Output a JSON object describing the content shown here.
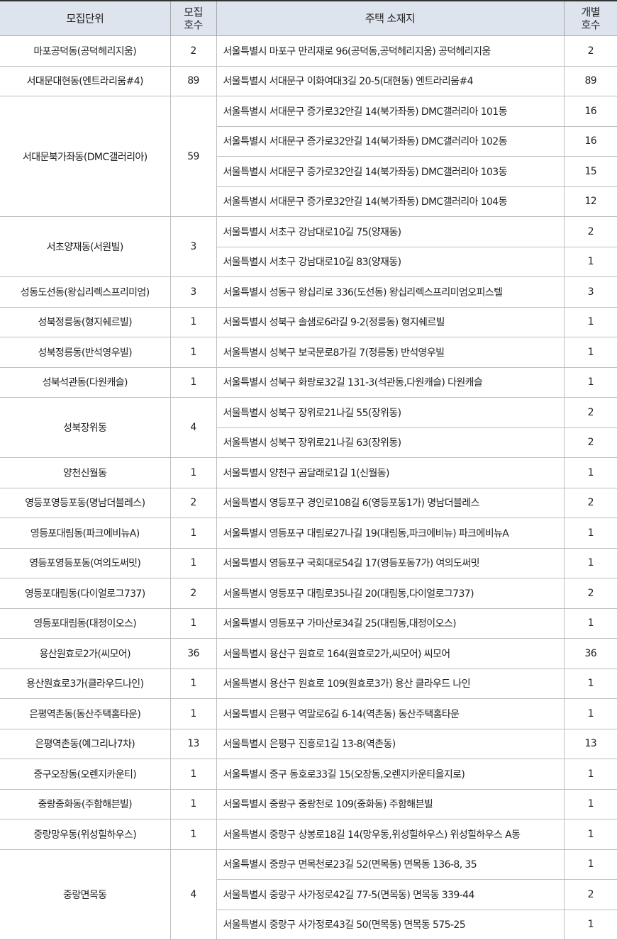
{
  "table": {
    "columns": [
      "모집단위",
      "모집\n호수",
      "주택 소재지",
      "개별\n호수"
    ],
    "groups": [
      {
        "unit": "마포공덕동(공덕헤리지움)",
        "count": 2,
        "addresses": [
          {
            "address": "서울특별시 마포구 만리재로 96(공덕동,공덕헤리지움) 공덕헤리지움",
            "count": 2
          }
        ]
      },
      {
        "unit": "서대문대현동(엔트라리움#4)",
        "count": 89,
        "addresses": [
          {
            "address": "서울특별시 서대문구 이화여대3길 20-5(대현동) 엔트라리움#4",
            "count": 89
          }
        ]
      },
      {
        "unit": "서대문북가좌동(DMC갤러리아)",
        "count": 59,
        "addresses": [
          {
            "address": "서울특별시 서대문구 증가로32안길 14(북가좌동) DMC갤러리아 101동",
            "count": 16
          },
          {
            "address": "서울특별시 서대문구 증가로32안길 14(북가좌동) DMC갤러리아 102동",
            "count": 16
          },
          {
            "address": "서울특별시 서대문구 증가로32안길 14(북가좌동) DMC갤러리아 103동",
            "count": 15
          },
          {
            "address": "서울특별시 서대문구 증가로32안길 14(북가좌동) DMC갤러리아 104동",
            "count": 12
          }
        ]
      },
      {
        "unit": "서초양재동(서원빌)",
        "count": 3,
        "addresses": [
          {
            "address": "서울특별시 서초구 강남대로10길 75(양재동)",
            "count": 2
          },
          {
            "address": "서울특별시 서초구 강남대로10길 83(양재동)",
            "count": 1
          }
        ]
      },
      {
        "unit": "성동도선동(왕십리렉스프리미엄)",
        "count": 3,
        "addresses": [
          {
            "address": "서울특별시 성동구 왕십리로 336(도선동) 왕십리렉스프리미엄오피스텔",
            "count": 3
          }
        ]
      },
      {
        "unit": "성북정릉동(형지쉐르빌)",
        "count": 1,
        "addresses": [
          {
            "address": "서울특별시 성북구 솔샘로6라길 9-2(정릉동) 형지쉐르빌",
            "count": 1
          }
        ]
      },
      {
        "unit": "성북정릉동(반석영우빌)",
        "count": 1,
        "addresses": [
          {
            "address": "서울특별시 성북구 보국문로8가길 7(정릉동) 반석영우빌",
            "count": 1
          }
        ]
      },
      {
        "unit": "성북석관동(다원캐슬)",
        "count": 1,
        "addresses": [
          {
            "address": "서울특별시 성북구 화랑로32길 131-3(석관동,다원캐슬) 다원캐슬",
            "count": 1
          }
        ]
      },
      {
        "unit": "성북장위동",
        "count": 4,
        "addresses": [
          {
            "address": "서울특별시 성북구 장위로21나길 55(장위동)",
            "count": 2
          },
          {
            "address": "서울특별시 성북구 장위로21나길 63(장위동)",
            "count": 2
          }
        ]
      },
      {
        "unit": "양천신월동",
        "count": 1,
        "addresses": [
          {
            "address": "서울특별시 양천구 곰달래로1길 1(신월동)",
            "count": 1
          }
        ]
      },
      {
        "unit": "영등포영등포동(명남더블레스)",
        "count": 2,
        "addresses": [
          {
            "address": "서울특별시 영등포구 경인로108길 6(영등포동1가) 명남더블레스",
            "count": 2
          }
        ]
      },
      {
        "unit": "영등포대림동(파크에비뉴A)",
        "count": 1,
        "addresses": [
          {
            "address": "서울특별시 영등포구 대림로27나길 19(대림동,파크에비뉴) 파크에비뉴A",
            "count": 1
          }
        ]
      },
      {
        "unit": "영등포영등포동(여의도써밋)",
        "count": 1,
        "addresses": [
          {
            "address": "서울특별시 영등포구 국회대로54길 17(영등포동7가) 여의도써밋",
            "count": 1
          }
        ]
      },
      {
        "unit": "영등포대림동(다이얼로그737)",
        "count": 2,
        "addresses": [
          {
            "address": "서울특별시 영등포구 대림로35나길 20(대림동,다이얼로그737)",
            "count": 2
          }
        ]
      },
      {
        "unit": "영등포대림동(대정이오스)",
        "count": 1,
        "addresses": [
          {
            "address": "서울특별시 영등포구 가마산로34길 25(대림동,대정이오스)",
            "count": 1
          }
        ]
      },
      {
        "unit": "용산원효로2가(씨모어)",
        "count": 36,
        "addresses": [
          {
            "address": "서울특별시 용산구 원효로 164(원효로2가,씨모어) 씨모어",
            "count": 36
          }
        ]
      },
      {
        "unit": "용산원효로3가(클라우드나인)",
        "count": 1,
        "addresses": [
          {
            "address": "서울특별시 용산구 원효로 109(원효로3가) 용산 클라우드 나인",
            "count": 1
          }
        ]
      },
      {
        "unit": "은평역촌동(동산주택홈타운)",
        "count": 1,
        "addresses": [
          {
            "address": "서울특별시 은평구 역말로6길 6-14(역촌동) 동산주택홈타운",
            "count": 1
          }
        ]
      },
      {
        "unit": "은평역촌동(예그리나7차)",
        "count": 13,
        "addresses": [
          {
            "address": "서울특별시 은평구 진흥로1길 13-8(역촌동)",
            "count": 13
          }
        ]
      },
      {
        "unit": "중구오장동(오렌지카운티)",
        "count": 1,
        "addresses": [
          {
            "address": "서울특별시 중구 동호로33길 15(오장동,오렌지카운티을지로)",
            "count": 1
          }
        ]
      },
      {
        "unit": "중랑중화동(주함해븐빌)",
        "count": 1,
        "addresses": [
          {
            "address": "서울특별시 중랑구 중랑천로 109(중화동) 주함해븐빌",
            "count": 1
          }
        ]
      },
      {
        "unit": "중랑망우동(위성힐하우스)",
        "count": 1,
        "addresses": [
          {
            "address": "서울특별시 중랑구 상봉로18길 14(망우동,위성힐하우스) 위성힐하우스 A동",
            "count": 1
          }
        ]
      },
      {
        "unit": "중랑면목동",
        "count": 4,
        "addresses": [
          {
            "address": "서울특별시 중랑구 면목천로23길 52(면목동) 면목동 136-8, 35",
            "count": 1
          },
          {
            "address": "서울특별시 중랑구 사가정로42길 77-5(면목동) 면목동 339-44",
            "count": 2
          },
          {
            "address": "서울특별시 중랑구 사가정로43길 50(면목동) 면목동 575-25",
            "count": 1
          }
        ]
      }
    ]
  }
}
